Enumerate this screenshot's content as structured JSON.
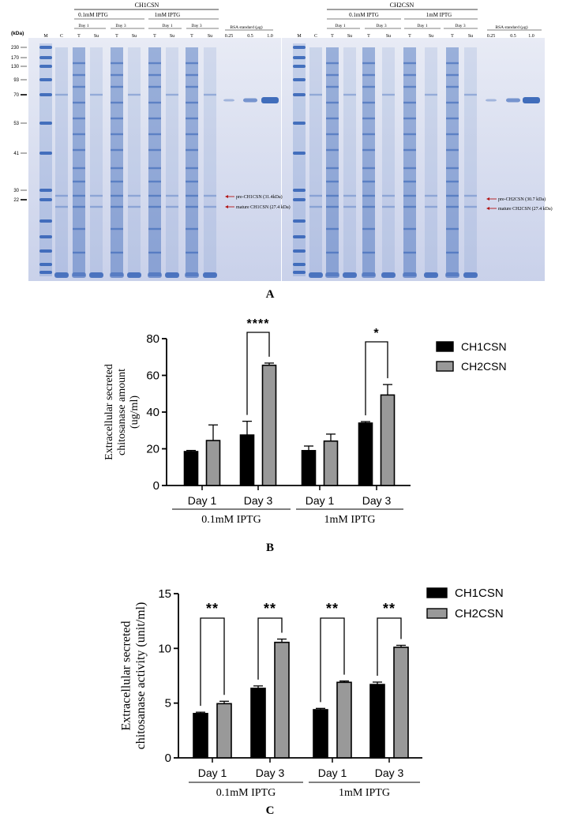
{
  "panel_labels": {
    "A": "A",
    "B": "B",
    "C": "C"
  },
  "gel": {
    "kda_label": "(kDa)",
    "ladder": [
      "230",
      "170",
      "130",
      "93",
      "70",
      "53",
      "41",
      "30",
      "22"
    ],
    "left": {
      "construct": "CH1CSN",
      "iptg_groups": [
        "0.1mM IPTG",
        "1mM IPTG"
      ],
      "days": [
        "Day 1",
        "Day 3",
        "Day 1",
        "Day 3"
      ],
      "lanes": [
        "M",
        "C",
        "T",
        "Su",
        "T",
        "Su",
        "T",
        "Su",
        "T",
        "Su"
      ],
      "bsa_label": "BSA standard (μg)",
      "bsa_lanes": [
        "0.25",
        "0.5",
        "1.0"
      ],
      "arrow_pre": "pre-CH1CSN (31.4kDa)",
      "arrow_mature": "mature CH1CSN (27.4 kDa)",
      "arrow_color": "#b31515"
    },
    "right": {
      "construct": "CH2CSN",
      "iptg_groups": [
        "0.1mM IPTG",
        "1mM IPTG"
      ],
      "days": [
        "Day 1",
        "Day 3",
        "Day 1",
        "Day 3"
      ],
      "lanes": [
        "M",
        "C",
        "T",
        "Su",
        "T",
        "Su",
        "T",
        "Su",
        "T",
        "Su"
      ],
      "bsa_label": "BSA standard (μg)",
      "bsa_lanes": [
        "0.25",
        "0.5",
        "1.0"
      ],
      "arrow_pre": "pre-CH2CSN (30.7 kDa)",
      "arrow_mature": "mature CH2CSN (27.4 kDa)",
      "arrow_color": "#b31515"
    },
    "gel_color": "#d9def0",
    "band_color": "#2f5fb5"
  },
  "chart_data": [
    {
      "id": "B",
      "type": "bar",
      "ylabel_lines": [
        "Extracellular secreted",
        "chitosanase amount",
        "(ug/ml)"
      ],
      "ylim": [
        0,
        80
      ],
      "yticks": [
        "0",
        "20",
        "40",
        "60",
        "80"
      ],
      "categories": [
        "Day 1",
        "Day 3",
        "Day 1",
        "Day 3"
      ],
      "groups": [
        "0.1mM IPTG",
        "1mM IPTG"
      ],
      "series": [
        {
          "name": "CH1CSN",
          "color": "#000000",
          "values": [
            18.5,
            27.5,
            19.0,
            34.0
          ],
          "errors": [
            0.6,
            7.5,
            2.5,
            0.8
          ]
        },
        {
          "name": "CH2CSN",
          "color": "#999999",
          "values": [
            24.5,
            65.5,
            24.2,
            49.3
          ],
          "errors": [
            8.5,
            1.2,
            3.8,
            5.7
          ]
        }
      ],
      "significance": [
        "",
        "****",
        "",
        "*"
      ]
    },
    {
      "id": "C",
      "type": "bar",
      "ylabel_lines": [
        "Extracellular secreted",
        "chitosanase activity (unit/ml)"
      ],
      "ylim": [
        0,
        15
      ],
      "yticks": [
        "0",
        "5",
        "10",
        "15"
      ],
      "categories": [
        "Day 1",
        "Day 3",
        "Day 1",
        "Day 3"
      ],
      "groups": [
        "0.1mM IPTG",
        "1mM IPTG"
      ],
      "series": [
        {
          "name": "CH1CSN",
          "color": "#000000",
          "values": [
            4.05,
            6.35,
            4.4,
            6.7
          ],
          "errors": [
            0.12,
            0.22,
            0.12,
            0.22
          ]
        },
        {
          "name": "CH2CSN",
          "color": "#999999",
          "values": [
            4.95,
            10.55,
            6.9,
            10.1
          ],
          "errors": [
            0.22,
            0.3,
            0.12,
            0.18
          ]
        }
      ],
      "significance": [
        "**",
        "**",
        "**",
        "**"
      ]
    }
  ]
}
